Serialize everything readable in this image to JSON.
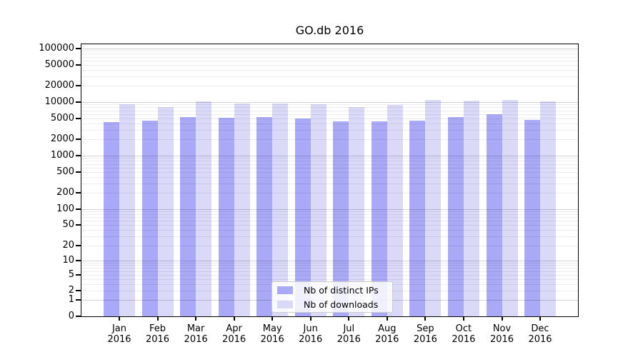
{
  "chart_data": {
    "type": "bar",
    "title": "GO.db 2016",
    "categories": [
      "Jan\n2016",
      "Feb\n2016",
      "Mar\n2016",
      "Apr\n2016",
      "May\n2016",
      "Jun\n2016",
      "Jul\n2016",
      "Aug\n2016",
      "Sep\n2016",
      "Oct\n2016",
      "Nov\n2016",
      "Dec\n2016"
    ],
    "series": [
      {
        "name": "Nb of distinct IPs",
        "color": "#a9a9f7",
        "values": [
          4200,
          4500,
          5200,
          5100,
          5300,
          4900,
          4400,
          4400,
          4500,
          5300,
          5900,
          4700
        ]
      },
      {
        "name": "Nb of downloads",
        "color": "#dadaf8",
        "values": [
          9000,
          8100,
          10400,
          9500,
          9400,
          9100,
          8100,
          8900,
          10900,
          10700,
          10900,
          10300
        ]
      }
    ],
    "xlabel": "",
    "ylabel": "",
    "yscale": "log1p",
    "y_ticks": [
      0,
      1,
      2,
      5,
      10,
      20,
      50,
      100,
      200,
      500,
      1000,
      2000,
      5000,
      10000,
      20000,
      50000,
      100000
    ],
    "ylim": [
      0,
      120000
    ],
    "grid": "both",
    "legend_position": "lower center",
    "colors": {
      "distinct_ips_bar": "#a9a9f7",
      "downloads_bar": "#dadaf8",
      "grid_minor": "#e9e9e9",
      "grid_major": "#cdcdcd",
      "axis": "#000000"
    }
  }
}
